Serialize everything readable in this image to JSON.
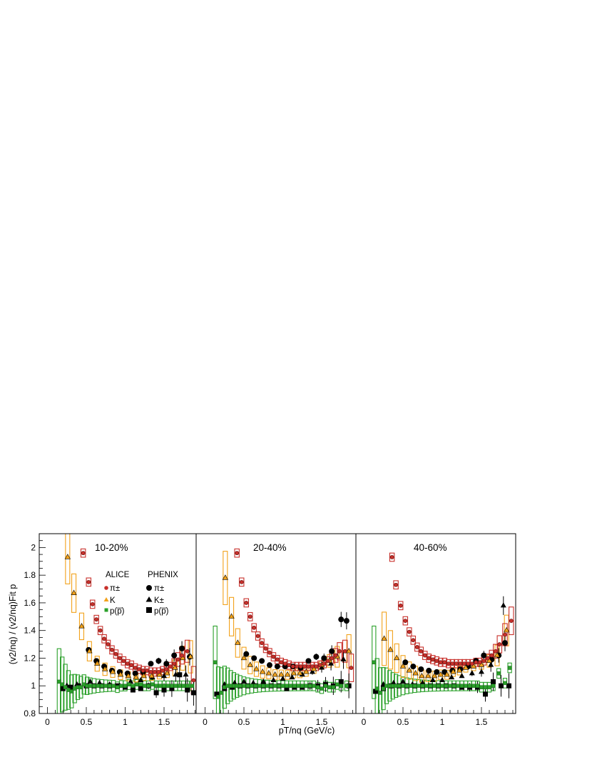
{
  "chart_data": {
    "type": "scatter",
    "y_axis_title": "(v2/nq) / (v2/nq)Fit p",
    "x_axis_title": "pT/nq (GeV/c)",
    "ylim": [
      0.8,
      2.1
    ],
    "xlim": [
      -0.1,
      1.92
    ],
    "y_ticks": [
      "0.8",
      "1",
      "1.2",
      "1.4",
      "1.6",
      "1.8",
      "2"
    ],
    "x_ticks": [
      "0",
      "0.5",
      "1",
      "1.5"
    ],
    "legend": {
      "alice_title": "ALICE",
      "phenix_title": "PHENIX",
      "alice_pion": "π±",
      "alice_kaon": "K",
      "alice_proton": "p(p̅)",
      "phenix_pion": "π±",
      "phenix_kaon": "K±",
      "phenix_proton": "p(p̅)"
    },
    "colors": {
      "alice_pion": "#c8302b",
      "alice_kaon": "#f2a21b",
      "alice_proton": "#2aa02a",
      "phenix": "#000000"
    },
    "panels": [
      {
        "label": "10-20%",
        "alice_pion": {
          "x": [
            0.46,
            0.53,
            0.58,
            0.63,
            0.68,
            0.73,
            0.78,
            0.83,
            0.88,
            0.93,
            0.98,
            1.03,
            1.08,
            1.13,
            1.18,
            1.23,
            1.28,
            1.33,
            1.38,
            1.43,
            1.48,
            1.53,
            1.58,
            1.63,
            1.68,
            1.73,
            1.8,
            1.88
          ],
          "y": [
            1.96,
            1.75,
            1.59,
            1.48,
            1.4,
            1.34,
            1.3,
            1.26,
            1.23,
            1.2,
            1.18,
            1.16,
            1.15,
            1.13,
            1.12,
            1.11,
            1.11,
            1.1,
            1.1,
            1.1,
            1.11,
            1.12,
            1.14,
            1.16,
            1.19,
            1.22,
            1.25,
            1.04
          ]
        },
        "alice_kaon": {
          "x": [
            0.26,
            0.34,
            0.44,
            0.54,
            0.64,
            0.74,
            0.84,
            0.94,
            1.04,
            1.14,
            1.24,
            1.34,
            1.44,
            1.54,
            1.64,
            1.74,
            1.84
          ],
          "y": [
            1.93,
            1.67,
            1.43,
            1.25,
            1.16,
            1.12,
            1.1,
            1.08,
            1.07,
            1.06,
            1.07,
            1.07,
            1.08,
            1.09,
            1.13,
            1.2,
            1.21
          ]
        },
        "alice_proton": {
          "x": [
            0.15,
            0.19,
            0.23,
            0.27,
            0.31,
            0.35,
            0.39,
            0.43,
            0.47,
            0.51,
            0.55,
            0.6,
            0.65,
            0.7,
            0.75,
            0.8,
            0.85,
            0.9,
            0.95,
            1.0,
            1.05,
            1.1,
            1.15,
            1.2,
            1.25,
            1.3,
            1.35,
            1.4,
            1.45,
            1.5,
            1.55,
            1.6,
            1.65,
            1.7,
            1.75,
            1.8,
            1.86
          ],
          "y": [
            1.03,
            1.01,
            0.99,
            0.97,
            0.96,
            0.98,
            0.99,
            0.99,
            1.01,
            1.0,
            1.0,
            1.0,
            1.0,
            1.0,
            1.0,
            1.0,
            1.0,
            0.99,
            1.0,
            1.0,
            1.01,
            1.0,
            1.01,
            1.01,
            1.0,
            1.0,
            1.01,
            1.0,
            1.0,
            1.0,
            1.0,
            1.0,
            1.0,
            1.0,
            1.0,
            1.0,
            1.0
          ]
        },
        "phenix_pion": {
          "x": [
            0.53,
            0.63,
            0.73,
            0.83,
            0.93,
            1.03,
            1.13,
            1.23,
            1.33,
            1.43,
            1.53,
            1.63,
            1.73,
            1.83
          ],
          "y": [
            1.26,
            1.18,
            1.14,
            1.11,
            1.1,
            1.09,
            1.09,
            1.1,
            1.16,
            1.18,
            1.16,
            1.22,
            1.27,
            1.21
          ]
        },
        "phenix_kaon": {
          "x": [
            0.25,
            0.38,
            0.55,
            0.67,
            0.8,
            0.93,
            1.07,
            1.2,
            1.35,
            1.5,
            1.65,
            1.78
          ],
          "y": [
            1.0,
            1.01,
            1.03,
            1.02,
            1.01,
            1.0,
            1.03,
            1.04,
            1.06,
            1.07,
            1.08,
            1.08
          ]
        },
        "phenix_proton": {
          "x": [
            0.2,
            0.3,
            0.4,
            0.5,
            0.6,
            0.7,
            0.8,
            0.9,
            1.0,
            1.1,
            1.2,
            1.3,
            1.4,
            1.5,
            1.6,
            1.7,
            1.8,
            1.88
          ],
          "y": [
            0.98,
            0.99,
            1.0,
            1.0,
            1.0,
            1.0,
            1.0,
            1.0,
            0.99,
            0.97,
            0.98,
            1.0,
            0.95,
            0.97,
            0.98,
            1.08,
            0.97,
            0.95
          ]
        }
      },
      {
        "label": "20-40%",
        "alice_pion": {
          "x": [
            0.41,
            0.47,
            0.53,
            0.58,
            0.63,
            0.68,
            0.73,
            0.78,
            0.83,
            0.88,
            0.93,
            0.98,
            1.03,
            1.08,
            1.13,
            1.18,
            1.23,
            1.28,
            1.33,
            1.38,
            1.43,
            1.48,
            1.53,
            1.58,
            1.63,
            1.68,
            1.73,
            1.8,
            1.88
          ],
          "y": [
            1.96,
            1.75,
            1.6,
            1.5,
            1.42,
            1.36,
            1.31,
            1.27,
            1.24,
            1.21,
            1.19,
            1.17,
            1.16,
            1.15,
            1.14,
            1.14,
            1.14,
            1.14,
            1.14,
            1.14,
            1.14,
            1.15,
            1.16,
            1.18,
            1.2,
            1.22,
            1.25,
            1.25,
            1.13
          ]
        },
        "alice_kaon": {
          "x": [
            0.26,
            0.34,
            0.42,
            0.5,
            0.58,
            0.66,
            0.74,
            0.82,
            0.9,
            0.98,
            1.06,
            1.14,
            1.22,
            1.3,
            1.4,
            1.5,
            1.6,
            1.7,
            1.85
          ],
          "y": [
            1.78,
            1.5,
            1.31,
            1.2,
            1.15,
            1.12,
            1.1,
            1.09,
            1.08,
            1.08,
            1.08,
            1.09,
            1.09,
            1.1,
            1.12,
            1.15,
            1.18,
            1.21,
            1.25
          ]
        },
        "alice_proton": {
          "x": [
            0.13,
            0.17,
            0.21,
            0.25,
            0.29,
            0.33,
            0.37,
            0.41,
            0.45,
            0.5,
            0.55,
            0.6,
            0.65,
            0.7,
            0.75,
            0.8,
            0.85,
            0.9,
            0.95,
            1.0,
            1.05,
            1.1,
            1.15,
            1.2,
            1.25,
            1.3,
            1.35,
            1.4,
            1.45,
            1.5,
            1.55,
            1.6,
            1.65,
            1.7,
            1.75,
            1.82
          ],
          "y": [
            1.17,
            0.92,
            0.95,
            0.99,
            1.0,
            1.0,
            1.0,
            1.0,
            1.0,
            1.0,
            1.0,
            1.0,
            1.0,
            1.0,
            1.0,
            1.0,
            1.0,
            1.0,
            1.0,
            1.0,
            1.0,
            1.0,
            1.0,
            1.0,
            1.0,
            1.0,
            1.0,
            1.0,
            0.99,
            0.98,
            1.0,
            0.99,
            0.99,
            1.01,
            1.0,
            1.0
          ]
        },
        "phenix_pion": {
          "x": [
            0.53,
            0.63,
            0.73,
            0.83,
            0.93,
            1.03,
            1.13,
            1.23,
            1.33,
            1.43,
            1.53,
            1.63,
            1.75,
            1.82
          ],
          "y": [
            1.23,
            1.2,
            1.18,
            1.15,
            1.14,
            1.14,
            1.14,
            1.13,
            1.18,
            1.21,
            1.2,
            1.25,
            1.48,
            1.47
          ]
        },
        "phenix_kaon": {
          "x": [
            0.25,
            0.38,
            0.5,
            0.62,
            0.75,
            0.88,
            1.0,
            1.12,
            1.25,
            1.38,
            1.5,
            1.62,
            1.78
          ],
          "y": [
            1.01,
            1.02,
            1.03,
            1.02,
            1.03,
            1.04,
            1.05,
            1.06,
            1.08,
            1.1,
            1.13,
            1.16,
            1.19
          ]
        },
        "phenix_proton": {
          "x": [
            0.15,
            0.25,
            0.35,
            0.45,
            0.55,
            0.65,
            0.75,
            0.85,
            0.95,
            1.05,
            1.15,
            1.25,
            1.35,
            1.45,
            1.55,
            1.65,
            1.75,
            1.85
          ],
          "y": [
            0.94,
            0.98,
            0.99,
            1.0,
            1.0,
            1.0,
            1.0,
            1.0,
            1.0,
            0.98,
            0.99,
            0.99,
            1.0,
            1.0,
            1.01,
            1.0,
            1.03,
            1.0
          ]
        }
      },
      {
        "label": "40-60%",
        "alice_pion": {
          "x": [
            0.36,
            0.41,
            0.47,
            0.53,
            0.58,
            0.63,
            0.68,
            0.73,
            0.78,
            0.83,
            0.88,
            0.93,
            0.98,
            1.03,
            1.08,
            1.13,
            1.18,
            1.23,
            1.28,
            1.33,
            1.38,
            1.43,
            1.48,
            1.53,
            1.58,
            1.63,
            1.68,
            1.73,
            1.8,
            1.88
          ],
          "y": [
            1.93,
            1.73,
            1.58,
            1.47,
            1.39,
            1.33,
            1.28,
            1.25,
            1.22,
            1.2,
            1.19,
            1.18,
            1.17,
            1.17,
            1.16,
            1.16,
            1.16,
            1.16,
            1.16,
            1.16,
            1.16,
            1.17,
            1.17,
            1.18,
            1.2,
            1.22,
            1.25,
            1.3,
            1.37,
            1.47
          ]
        },
        "alice_kaon": {
          "x": [
            0.26,
            0.34,
            0.42,
            0.5,
            0.58,
            0.66,
            0.74,
            0.82,
            0.9,
            0.98,
            1.06,
            1.14,
            1.22,
            1.3,
            1.4,
            1.5,
            1.6,
            1.7,
            1.82
          ],
          "y": [
            1.34,
            1.26,
            1.2,
            1.14,
            1.11,
            1.09,
            1.07,
            1.07,
            1.07,
            1.08,
            1.08,
            1.1,
            1.11,
            1.13,
            1.14,
            1.15,
            1.18,
            1.22,
            1.4
          ]
        },
        "alice_proton": {
          "x": [
            0.13,
            0.17,
            0.21,
            0.25,
            0.29,
            0.33,
            0.37,
            0.41,
            0.45,
            0.5,
            0.55,
            0.6,
            0.65,
            0.7,
            0.75,
            0.8,
            0.85,
            0.9,
            0.95,
            1.0,
            1.05,
            1.1,
            1.15,
            1.2,
            1.25,
            1.3,
            1.35,
            1.4,
            1.45,
            1.5,
            1.55,
            1.6,
            1.65,
            1.72,
            1.8,
            1.86
          ],
          "y": [
            1.17,
            0.98,
            0.95,
            0.98,
            1.0,
            1.0,
            1.0,
            1.0,
            1.0,
            1.0,
            1.0,
            1.0,
            1.0,
            1.0,
            1.0,
            1.0,
            1.0,
            1.0,
            1.0,
            1.0,
            1.0,
            1.0,
            1.0,
            1.0,
            1.0,
            1.0,
            1.0,
            1.0,
            1.0,
            0.99,
            0.99,
            0.99,
            1.0,
            1.09,
            1.02,
            1.13
          ]
        },
        "phenix_pion": {
          "x": [
            0.53,
            0.63,
            0.73,
            0.83,
            0.93,
            1.03,
            1.13,
            1.23,
            1.33,
            1.43,
            1.53,
            1.63,
            1.72,
            1.8
          ],
          "y": [
            1.17,
            1.14,
            1.12,
            1.11,
            1.1,
            1.1,
            1.11,
            1.12,
            1.14,
            1.18,
            1.22,
            1.19,
            1.22,
            1.31
          ]
        },
        "phenix_kaon": {
          "x": [
            0.25,
            0.38,
            0.5,
            0.62,
            0.75,
            0.88,
            1.0,
            1.12,
            1.25,
            1.38,
            1.5,
            1.62,
            1.78
          ],
          "y": [
            1.01,
            1.02,
            1.03,
            1.01,
            1.02,
            1.04,
            1.04,
            1.06,
            1.07,
            1.09,
            1.1,
            1.15,
            1.58
          ]
        },
        "phenix_proton": {
          "x": [
            0.15,
            0.25,
            0.35,
            0.45,
            0.55,
            0.65,
            0.75,
            0.85,
            0.95,
            1.05,
            1.15,
            1.25,
            1.35,
            1.45,
            1.55,
            1.65,
            1.75,
            1.85
          ],
          "y": [
            0.96,
            0.98,
            1.0,
            1.0,
            1.0,
            1.0,
            1.0,
            1.0,
            1.0,
            1.0,
            1.0,
            0.99,
            0.99,
            0.99,
            0.94,
            1.03,
            1.0,
            1.0
          ]
        }
      }
    ]
  }
}
